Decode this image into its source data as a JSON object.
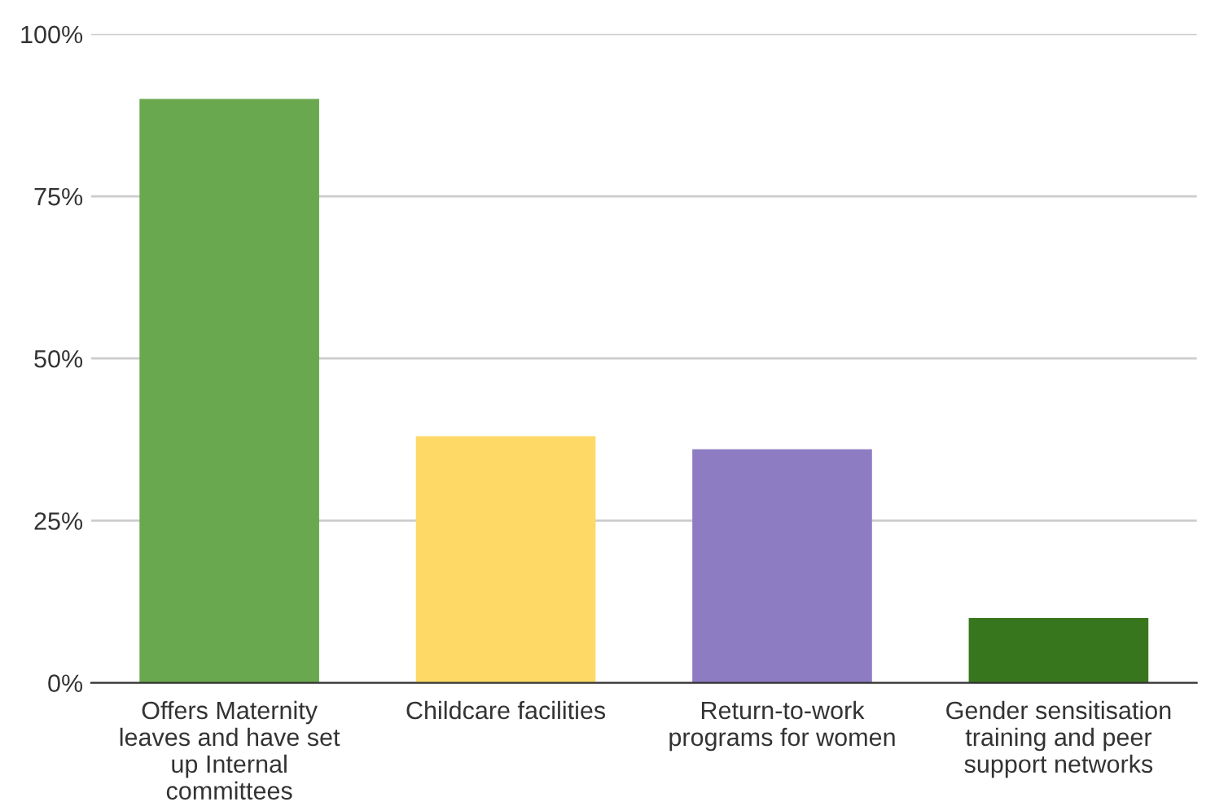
{
  "chart_data": {
    "type": "bar",
    "categories": [
      "Offers Maternity\nleaves and have set\nup Internal\ncommittees",
      "Childcare facilities",
      "Return-to-work\nprograms for women",
      "Gender sensitisation\ntraining and peer\nsupport networks"
    ],
    "values": [
      90,
      38,
      36,
      10
    ],
    "colors": [
      "#6aa84f",
      "#ffd966",
      "#8e7cc3",
      "#38761d"
    ],
    "ylim": [
      0,
      100
    ],
    "yticks": [
      {
        "value": 0,
        "label": "0%"
      },
      {
        "value": 25,
        "label": "25%"
      },
      {
        "value": 50,
        "label": "50%"
      },
      {
        "value": 75,
        "label": "75%"
      },
      {
        "value": 100,
        "label": "100%"
      }
    ],
    "grid": "y"
  }
}
